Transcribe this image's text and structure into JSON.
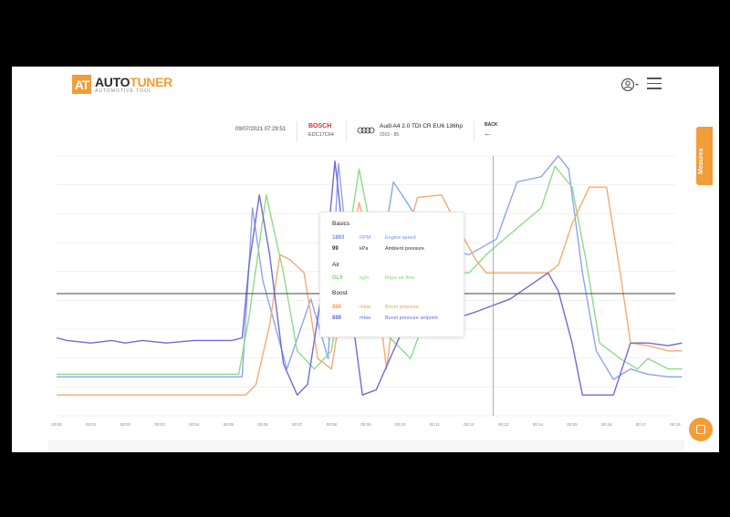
{
  "app": {
    "logo_mark": "AT",
    "logo_name_a": "AUTO",
    "logo_name_b": "TUNER",
    "logo_tagline": "AUTOMOTIVE TOOL"
  },
  "header_icons": [
    "user-icon",
    "menu-icon"
  ],
  "session": {
    "datetime": "09/07/2021 07:29:51",
    "ecu_brand": "BOSCH",
    "ecu_model": "EDC17C64",
    "car_name": "Audi A4 2.0 TDI CR EU6 136hp",
    "car_years": "2015 - 85",
    "back_label": "BACK",
    "back_icon": "arrow-left-icon"
  },
  "side_tab": {
    "label": "Mesures"
  },
  "tooltip": {
    "groups": [
      {
        "title": "Basics",
        "rows": [
          {
            "value": "1893",
            "unit": "RPM",
            "name": "Engine speed",
            "color": "#7b8fe0"
          },
          {
            "value": "99",
            "unit": "kPa",
            "name": "Ambient pressure",
            "color": "#333333"
          }
        ]
      },
      {
        "title": "Air",
        "rows": [
          {
            "value": "DL9",
            "unit": "kg/h",
            "name": "Mass air flow",
            "color": "#7fd97a"
          }
        ]
      },
      {
        "title": "Boost",
        "rows": [
          {
            "value": "888",
            "unit": "mbar",
            "name": "Boost pressure",
            "color": "#f3a25f"
          },
          {
            "value": "888",
            "unit": "mbar",
            "name": "Boost pressure setpoint",
            "color": "#6f6bd6"
          }
        ]
      }
    ]
  },
  "chart_data": {
    "type": "line",
    "x_ticks": [
      "00:00",
      "00:01",
      "00:02",
      "00:03",
      "00:04",
      "00:05",
      "00:06",
      "00:07",
      "00:08",
      "00:09",
      "00:10",
      "00:11",
      "00:12",
      "00:13",
      "00:14",
      "00:15",
      "00:16",
      "00:17",
      "00:18"
    ],
    "ylim": [
      0,
      100
    ],
    "grid": true,
    "cursor_x": 12.7,
    "threshold": 47,
    "series": [
      {
        "color": "#8ea4ee",
        "x": [
          0,
          5.4,
          5.7,
          6.0,
          6.7,
          7.4,
          7.9,
          8.2,
          8.7,
          9.3,
          9.8,
          10.2,
          11.0,
          12.0,
          12.8,
          13.4,
          14.1,
          14.6,
          14.9,
          15.3,
          15.7,
          16.2,
          16.7,
          17.2,
          17.8,
          18.2
        ],
        "y": [
          15,
          15,
          80,
          52,
          18,
          45,
          22,
          97,
          35,
          48,
          90,
          82,
          65,
          62,
          68,
          90,
          92,
          100,
          95,
          55,
          25,
          14,
          18,
          16,
          15,
          15
        ]
      },
      {
        "color": "#8edc87",
        "x": [
          0,
          5.3,
          5.6,
          6.1,
          6.6,
          7.0,
          7.5,
          8.0,
          8.4,
          8.8,
          9.2,
          9.7,
          10.3,
          11.0,
          11.5,
          12.0,
          12.5,
          13.2,
          14.1,
          14.5,
          15.0,
          15.4,
          15.8,
          16.4,
          16.9,
          17.2,
          17.8,
          18.2
        ],
        "y": [
          16,
          16,
          38,
          85,
          55,
          25,
          18,
          25,
          60,
          95,
          68,
          30,
          22,
          48,
          55,
          55,
          62,
          70,
          80,
          96,
          88,
          60,
          28,
          22,
          18,
          22,
          18,
          18
        ]
      },
      {
        "color": "#f5ab70",
        "x": [
          0,
          5.5,
          5.8,
          6.2,
          6.5,
          6.8,
          7.2,
          7.6,
          8.0,
          8.4,
          8.8,
          9.2,
          9.6,
          10.0,
          10.5,
          11.2,
          11.7,
          12.2,
          12.5,
          14.3,
          14.6,
          15.0,
          15.5,
          16.0,
          16.4,
          16.7,
          17.2,
          17.8,
          18.2
        ],
        "y": [
          8,
          8,
          12,
          35,
          62,
          60,
          55,
          22,
          18,
          52,
          82,
          62,
          18,
          60,
          84,
          85,
          72,
          60,
          55,
          55,
          58,
          74,
          88,
          88,
          55,
          28,
          27,
          25,
          25
        ]
      },
      {
        "color": "#6f6bd6",
        "x": [
          0,
          0.3,
          1,
          1.6,
          2,
          2.5,
          3.2,
          4,
          5.1,
          5.4,
          5.6,
          5.9,
          6.2,
          6.6,
          7.0,
          7.3,
          7.8,
          8.1,
          8.6,
          8.9,
          9.3,
          9.9,
          10.3,
          10.8,
          11.5,
          12.2,
          13.2,
          14.3,
          14.6,
          15.0,
          15.3,
          15.6,
          16.2,
          16.7,
          17.2,
          17.8,
          18.2
        ],
        "y": [
          30,
          29,
          28,
          29,
          28,
          29,
          28,
          29,
          29,
          30,
          58,
          85,
          62,
          20,
          8,
          12,
          55,
          98,
          38,
          8,
          10,
          28,
          40,
          35,
          37,
          40,
          45,
          55,
          48,
          28,
          8,
          8,
          8,
          28,
          28,
          27,
          28
        ]
      }
    ]
  }
}
